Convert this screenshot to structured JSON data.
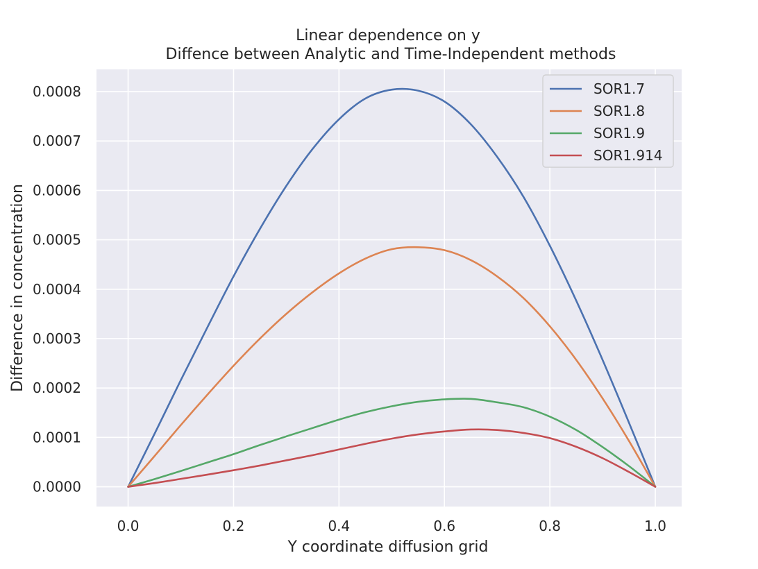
{
  "chart_data": {
    "type": "line",
    "title_lines": [
      "Linear dependence on y",
      "Diffence between Analytic and Time-Independent methods"
    ],
    "xlabel": "Y coordinate diffusion grid",
    "ylabel": "Difference in concentration",
    "xlim": [
      -0.06,
      1.05
    ],
    "ylim": [
      -4e-05,
      0.000845
    ],
    "xticks": [
      0.0,
      0.2,
      0.4,
      0.6,
      0.8,
      1.0
    ],
    "xtick_labels": [
      "0.0",
      "0.2",
      "0.4",
      "0.6",
      "0.8",
      "1.0"
    ],
    "yticks": [
      0.0,
      0.0001,
      0.0002,
      0.0003,
      0.0004,
      0.0005,
      0.0006,
      0.0007,
      0.0008
    ],
    "ytick_labels": [
      "0.0000",
      "0.0001",
      "0.0002",
      "0.0003",
      "0.0004",
      "0.0005",
      "0.0006",
      "0.0007",
      "0.0008"
    ],
    "grid": true,
    "legend_position": "top-right",
    "x": [
      0.0,
      0.05,
      0.1,
      0.15,
      0.2,
      0.25,
      0.3,
      0.35,
      0.4,
      0.45,
      0.5,
      0.55,
      0.6,
      0.65,
      0.7,
      0.75,
      0.8,
      0.85,
      0.9,
      0.95,
      1.0
    ],
    "series": [
      {
        "name": "SOR1.7",
        "color": "#4c72b0",
        "values": [
          0.0,
          0.000107,
          0.000216,
          0.000322,
          0.000426,
          0.000522,
          0.000609,
          0.000684,
          0.000744,
          0.000786,
          0.000804,
          0.000802,
          0.00078,
          0.000734,
          0.000668,
          0.000587,
          0.000488,
          0.000377,
          0.000257,
          0.00013,
          0.0
        ]
      },
      {
        "name": "SOR1.8",
        "color": "#dd8452",
        "values": [
          0.0,
          6.2e-05,
          0.000125,
          0.000186,
          0.000245,
          0.0003,
          0.00035,
          0.000394,
          0.000432,
          0.000462,
          0.000481,
          0.000485,
          0.000479,
          0.000459,
          0.000426,
          0.000382,
          0.000325,
          0.000257,
          0.000179,
          9.3e-05,
          0.0
        ]
      },
      {
        "name": "SOR1.9",
        "color": "#55a868",
        "values": [
          0.0,
          1.55e-05,
          3.2e-05,
          4.9e-05,
          6.6e-05,
          8.45e-05,
          0.000102,
          0.000119,
          0.000136,
          0.000151,
          0.000163,
          0.000172,
          0.000177,
          0.000178,
          0.000171,
          0.000161,
          0.000142,
          0.000115,
          8.05e-05,
          4.2e-05,
          0.0
        ]
      },
      {
        "name": "SOR1.914",
        "color": "#c44e52",
        "values": [
          0.0,
          7.5e-06,
          1.6e-05,
          2.45e-05,
          3.35e-05,
          4.3e-05,
          5.35e-05,
          6.4e-05,
          7.55e-05,
          8.7e-05,
          9.75e-05,
          0.000106,
          0.000112,
          0.000116,
          0.000115,
          0.000109,
          9.85e-05,
          8.1e-05,
          5.8e-05,
          3e-05,
          0.0
        ]
      }
    ]
  }
}
